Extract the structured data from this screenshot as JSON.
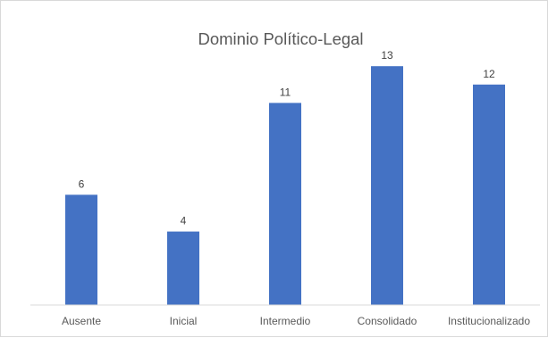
{
  "chart_data": {
    "type": "bar",
    "title": "Dominio Político-Legal",
    "categories": [
      "Ausente",
      "Inicial",
      "Intermedio",
      "Consolidado",
      "Institucionalizado"
    ],
    "values": [
      6,
      4,
      11,
      13,
      12
    ],
    "ylim": [
      0,
      14
    ],
    "grid": false,
    "legend": "none",
    "bar_color": "#4472C4",
    "axis_color": "#d9d9d9"
  }
}
